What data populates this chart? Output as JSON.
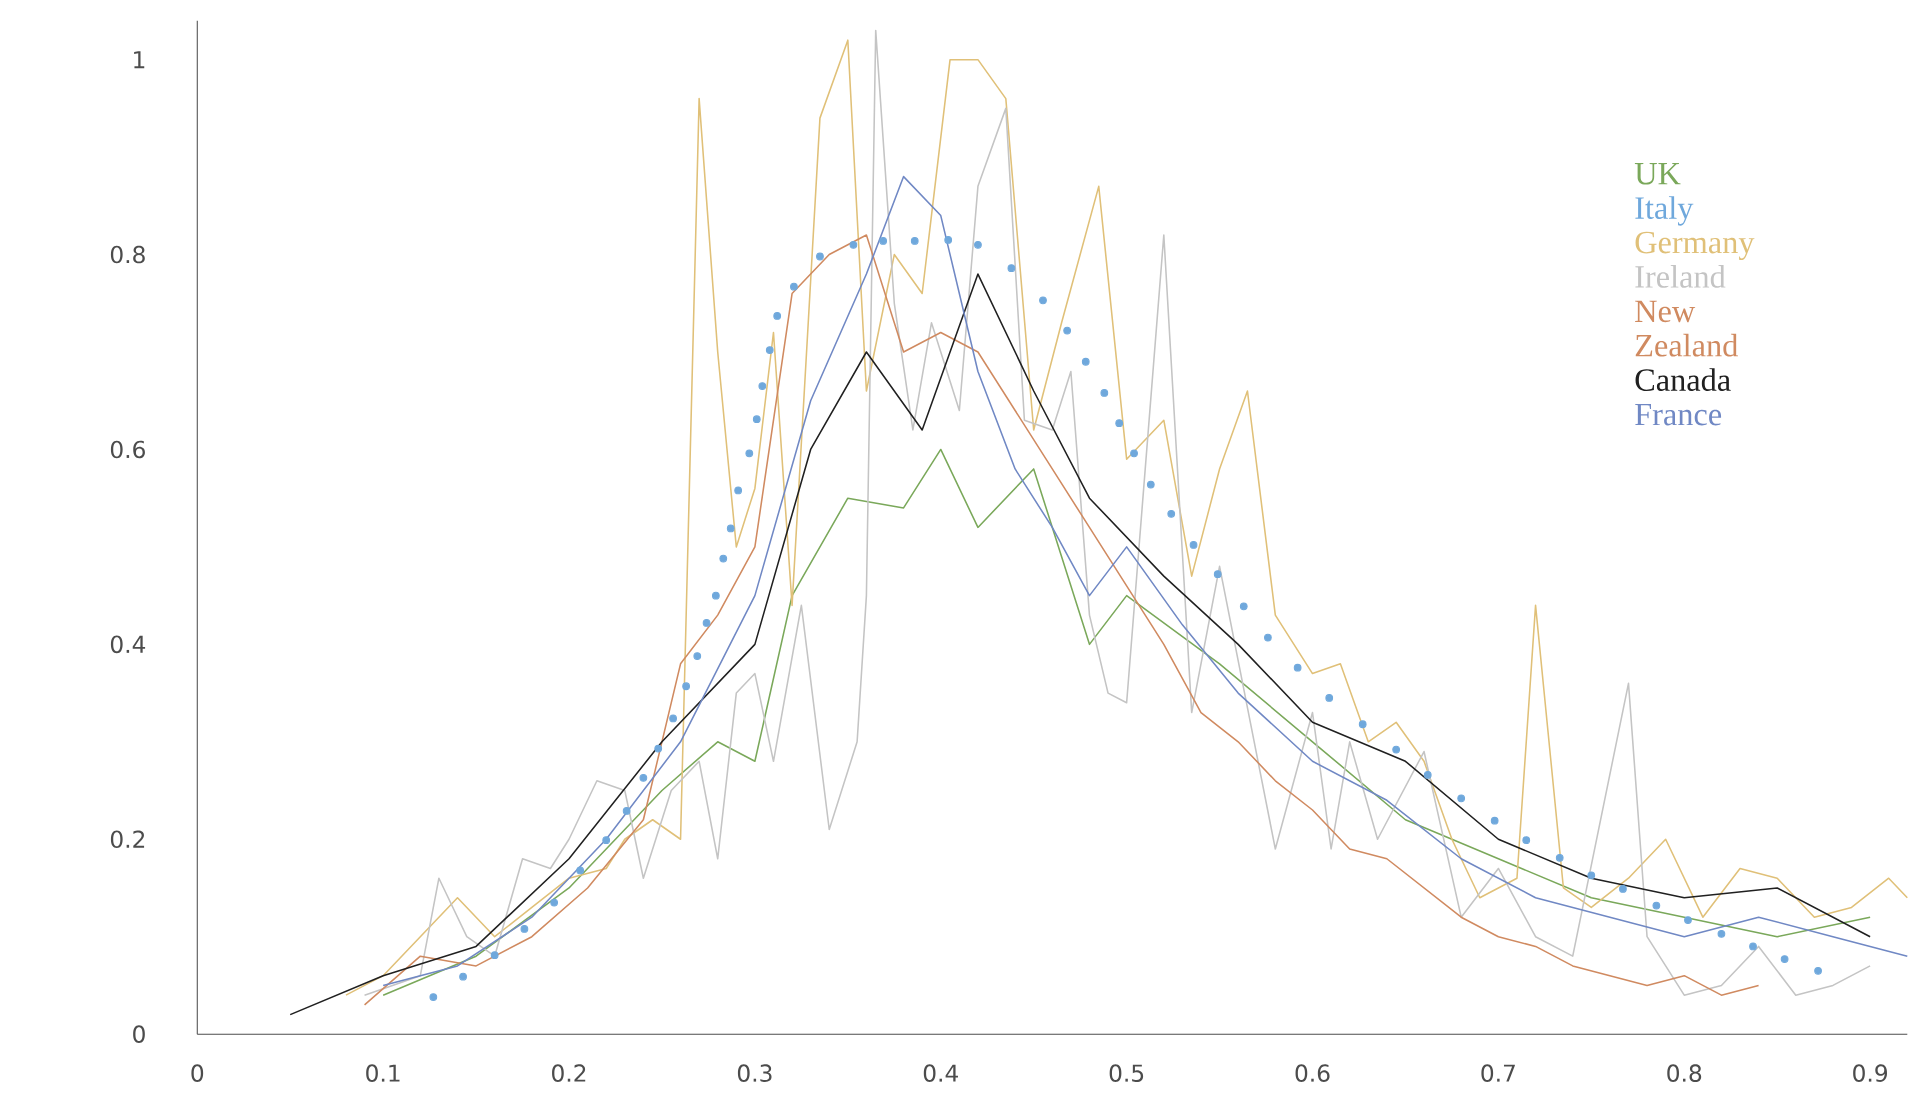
{
  "chart_data": {
    "type": "line",
    "xlim": [
      0,
      0.92
    ],
    "ylim": [
      0,
      1.04
    ],
    "xticks": [
      0,
      0.1,
      0.2,
      0.3,
      0.4,
      0.5,
      0.6,
      0.7,
      0.8,
      0.9
    ],
    "yticks": [
      0,
      0.2,
      0.4,
      0.6,
      0.8,
      1
    ],
    "legend": "top right",
    "marker": "none",
    "line_style": "solid",
    "series": [
      {
        "name": "UK",
        "color": "#7aa85a",
        "x": [
          0.1,
          0.15,
          0.2,
          0.25,
          0.28,
          0.3,
          0.32,
          0.35,
          0.38,
          0.4,
          0.42,
          0.45,
          0.48,
          0.5,
          0.55,
          0.6,
          0.65,
          0.7,
          0.75,
          0.8,
          0.85,
          0.9
        ],
        "values": [
          0.04,
          0.08,
          0.15,
          0.25,
          0.3,
          0.28,
          0.45,
          0.55,
          0.54,
          0.6,
          0.52,
          0.58,
          0.4,
          0.45,
          0.38,
          0.3,
          0.22,
          0.18,
          0.14,
          0.12,
          0.1,
          0.12
        ]
      },
      {
        "name": "Italy",
        "color": "#6fa8dc",
        "type": "scatter",
        "marker": "circle",
        "x": [
          0.127,
          0.143,
          0.16,
          0.176,
          0.192,
          0.206,
          0.22,
          0.231,
          0.24,
          0.248,
          0.256,
          0.263,
          0.269,
          0.274,
          0.279,
          0.283,
          0.287,
          0.291,
          0.297,
          0.301,
          0.304,
          0.308,
          0.312,
          0.321,
          0.335,
          0.353,
          0.369,
          0.386,
          0.404,
          0.42,
          0.438,
          0.455,
          0.468,
          0.478,
          0.488,
          0.496,
          0.504,
          0.513,
          0.524,
          0.536,
          0.549,
          0.563,
          0.576,
          0.592,
          0.609,
          0.627,
          0.645,
          0.662,
          0.68,
          0.698,
          0.715,
          0.733,
          0.75,
          0.767,
          0.785,
          0.802,
          0.82,
          0.837,
          0.854,
          0.872
        ],
        "values": [
          0.038,
          0.059,
          0.081,
          0.108,
          0.135,
          0.168,
          0.199,
          0.229,
          0.263,
          0.293,
          0.324,
          0.357,
          0.388,
          0.422,
          0.45,
          0.488,
          0.519,
          0.558,
          0.596,
          0.631,
          0.665,
          0.702,
          0.737,
          0.767,
          0.798,
          0.81,
          0.814,
          0.814,
          0.815,
          0.81,
          0.786,
          0.753,
          0.722,
          0.69,
          0.658,
          0.627,
          0.596,
          0.564,
          0.534,
          0.502,
          0.472,
          0.439,
          0.407,
          0.376,
          0.345,
          0.318,
          0.292,
          0.266,
          0.242,
          0.219,
          0.199,
          0.181,
          0.163,
          0.149,
          0.132,
          0.117,
          0.103,
          0.09,
          0.077,
          0.065
        ]
      },
      {
        "name": "Germany",
        "color": "#e0c078",
        "x": [
          0.08,
          0.1,
          0.12,
          0.14,
          0.16,
          0.18,
          0.2,
          0.22,
          0.23,
          0.245,
          0.26,
          0.27,
          0.28,
          0.29,
          0.3,
          0.31,
          0.32,
          0.335,
          0.35,
          0.36,
          0.375,
          0.39,
          0.405,
          0.42,
          0.435,
          0.45,
          0.465,
          0.485,
          0.5,
          0.52,
          0.535,
          0.55,
          0.565,
          0.58,
          0.6,
          0.615,
          0.63,
          0.645,
          0.66,
          0.675,
          0.69,
          0.71,
          0.72,
          0.735,
          0.75,
          0.77,
          0.79,
          0.81,
          0.83,
          0.85,
          0.87,
          0.89,
          0.91,
          0.92
        ],
        "values": [
          0.04,
          0.06,
          0.1,
          0.14,
          0.1,
          0.13,
          0.16,
          0.17,
          0.2,
          0.22,
          0.2,
          0.96,
          0.7,
          0.5,
          0.56,
          0.72,
          0.44,
          0.94,
          1.02,
          0.66,
          0.8,
          0.76,
          1.0,
          1.0,
          0.96,
          0.62,
          0.73,
          0.87,
          0.59,
          0.63,
          0.47,
          0.58,
          0.66,
          0.43,
          0.37,
          0.38,
          0.3,
          0.32,
          0.28,
          0.2,
          0.14,
          0.16,
          0.44,
          0.15,
          0.13,
          0.16,
          0.2,
          0.12,
          0.17,
          0.16,
          0.12,
          0.13,
          0.16,
          0.14
        ]
      },
      {
        "name": "Ireland",
        "color": "#c4c4c4",
        "x": [
          0.09,
          0.12,
          0.13,
          0.145,
          0.16,
          0.175,
          0.19,
          0.2,
          0.215,
          0.23,
          0.24,
          0.255,
          0.27,
          0.28,
          0.29,
          0.3,
          0.31,
          0.325,
          0.34,
          0.355,
          0.36,
          0.365,
          0.375,
          0.385,
          0.395,
          0.41,
          0.42,
          0.435,
          0.445,
          0.46,
          0.47,
          0.48,
          0.49,
          0.5,
          0.52,
          0.535,
          0.55,
          0.58,
          0.6,
          0.61,
          0.62,
          0.635,
          0.66,
          0.68,
          0.7,
          0.72,
          0.74,
          0.77,
          0.78,
          0.8,
          0.82,
          0.84,
          0.86,
          0.88,
          0.9
        ],
        "values": [
          0.04,
          0.06,
          0.16,
          0.1,
          0.08,
          0.18,
          0.17,
          0.2,
          0.26,
          0.25,
          0.16,
          0.25,
          0.28,
          0.18,
          0.35,
          0.37,
          0.28,
          0.44,
          0.21,
          0.3,
          0.45,
          1.03,
          0.75,
          0.62,
          0.73,
          0.64,
          0.87,
          0.95,
          0.63,
          0.62,
          0.68,
          0.43,
          0.35,
          0.34,
          0.82,
          0.33,
          0.48,
          0.19,
          0.33,
          0.19,
          0.3,
          0.2,
          0.29,
          0.12,
          0.17,
          0.1,
          0.08,
          0.36,
          0.1,
          0.04,
          0.05,
          0.09,
          0.04,
          0.05,
          0.07
        ]
      },
      {
        "name": "New Zealand",
        "color": "#d08a60",
        "x": [
          0.09,
          0.12,
          0.15,
          0.18,
          0.21,
          0.24,
          0.26,
          0.28,
          0.3,
          0.32,
          0.34,
          0.36,
          0.38,
          0.4,
          0.42,
          0.44,
          0.46,
          0.48,
          0.5,
          0.52,
          0.54,
          0.56,
          0.58,
          0.6,
          0.62,
          0.64,
          0.66,
          0.68,
          0.7,
          0.72,
          0.74,
          0.76,
          0.78,
          0.8,
          0.82,
          0.84
        ],
        "values": [
          0.03,
          0.08,
          0.07,
          0.1,
          0.15,
          0.22,
          0.38,
          0.43,
          0.5,
          0.76,
          0.8,
          0.82,
          0.7,
          0.72,
          0.7,
          0.64,
          0.58,
          0.52,
          0.46,
          0.4,
          0.33,
          0.3,
          0.26,
          0.23,
          0.19,
          0.18,
          0.15,
          0.12,
          0.1,
          0.09,
          0.07,
          0.06,
          0.05,
          0.06,
          0.04,
          0.05
        ]
      },
      {
        "name": "Canada",
        "color": "#202020",
        "x": [
          0.05,
          0.1,
          0.15,
          0.2,
          0.25,
          0.3,
          0.33,
          0.36,
          0.39,
          0.42,
          0.45,
          0.48,
          0.52,
          0.56,
          0.6,
          0.65,
          0.7,
          0.75,
          0.8,
          0.85,
          0.9
        ],
        "values": [
          0.02,
          0.06,
          0.09,
          0.18,
          0.3,
          0.4,
          0.6,
          0.7,
          0.62,
          0.78,
          0.66,
          0.55,
          0.47,
          0.4,
          0.32,
          0.28,
          0.2,
          0.16,
          0.14,
          0.15,
          0.1
        ]
      },
      {
        "name": "France",
        "color": "#7088c4",
        "x": [
          0.1,
          0.14,
          0.18,
          0.22,
          0.26,
          0.3,
          0.33,
          0.36,
          0.38,
          0.4,
          0.42,
          0.44,
          0.46,
          0.48,
          0.5,
          0.53,
          0.56,
          0.6,
          0.64,
          0.68,
          0.72,
          0.76,
          0.8,
          0.84,
          0.88,
          0.92
        ],
        "values": [
          0.05,
          0.07,
          0.12,
          0.2,
          0.3,
          0.45,
          0.65,
          0.78,
          0.88,
          0.84,
          0.68,
          0.58,
          0.52,
          0.45,
          0.5,
          0.42,
          0.35,
          0.28,
          0.24,
          0.18,
          0.14,
          0.12,
          0.1,
          0.12,
          0.1,
          0.08
        ]
      }
    ]
  }
}
